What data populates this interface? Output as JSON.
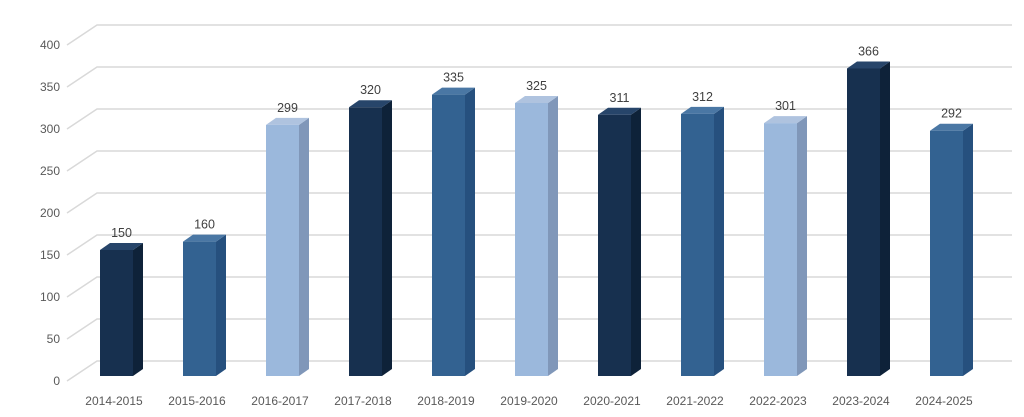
{
  "chart_data": {
    "type": "bar",
    "style": "3d-column",
    "title": "",
    "xlabel": "",
    "ylabel": "",
    "legend": "none",
    "grid": true,
    "background_color": "#FFFFFF",
    "categories": [
      "2014-2015",
      "2015-2016",
      "2016-2017",
      "2017-2018",
      "2018-2019",
      "2019-2020",
      "2020-2021",
      "2021-2022",
      "2022-2023",
      "2023-2024",
      "2024-2025"
    ],
    "values": [
      150,
      160,
      299,
      320,
      335,
      325,
      311,
      312,
      301,
      366,
      292
    ],
    "data_labels": [
      "150",
      "160",
      "299",
      "320",
      "335",
      "325",
      "311",
      "312",
      "301",
      "366",
      "292"
    ],
    "bar_color_names": [
      "navy",
      "medium",
      "light",
      "navy",
      "medium",
      "light",
      "navy",
      "medium",
      "light",
      "navy",
      "medium"
    ],
    "colors": {
      "navy": {
        "front": "#17304F",
        "top": "#27456A",
        "side": "#0E2239"
      },
      "medium": {
        "front": "#336291",
        "top": "#4A77A4",
        "side": "#26507E"
      },
      "light": {
        "front": "#9BB8DC",
        "top": "#AFC3DF",
        "side": "#8097B9"
      }
    },
    "y_ticks": [
      0,
      50,
      100,
      150,
      200,
      250,
      300,
      350,
      400
    ],
    "y_tick_labels": [
      "0",
      "50",
      "100",
      "150",
      "200",
      "250",
      "300",
      "350",
      "400"
    ],
    "ylim": [
      0,
      400
    ],
    "gridline_color": "#D9D9D9",
    "axis_label_color": "#595959",
    "data_label_color": "#404040"
  }
}
